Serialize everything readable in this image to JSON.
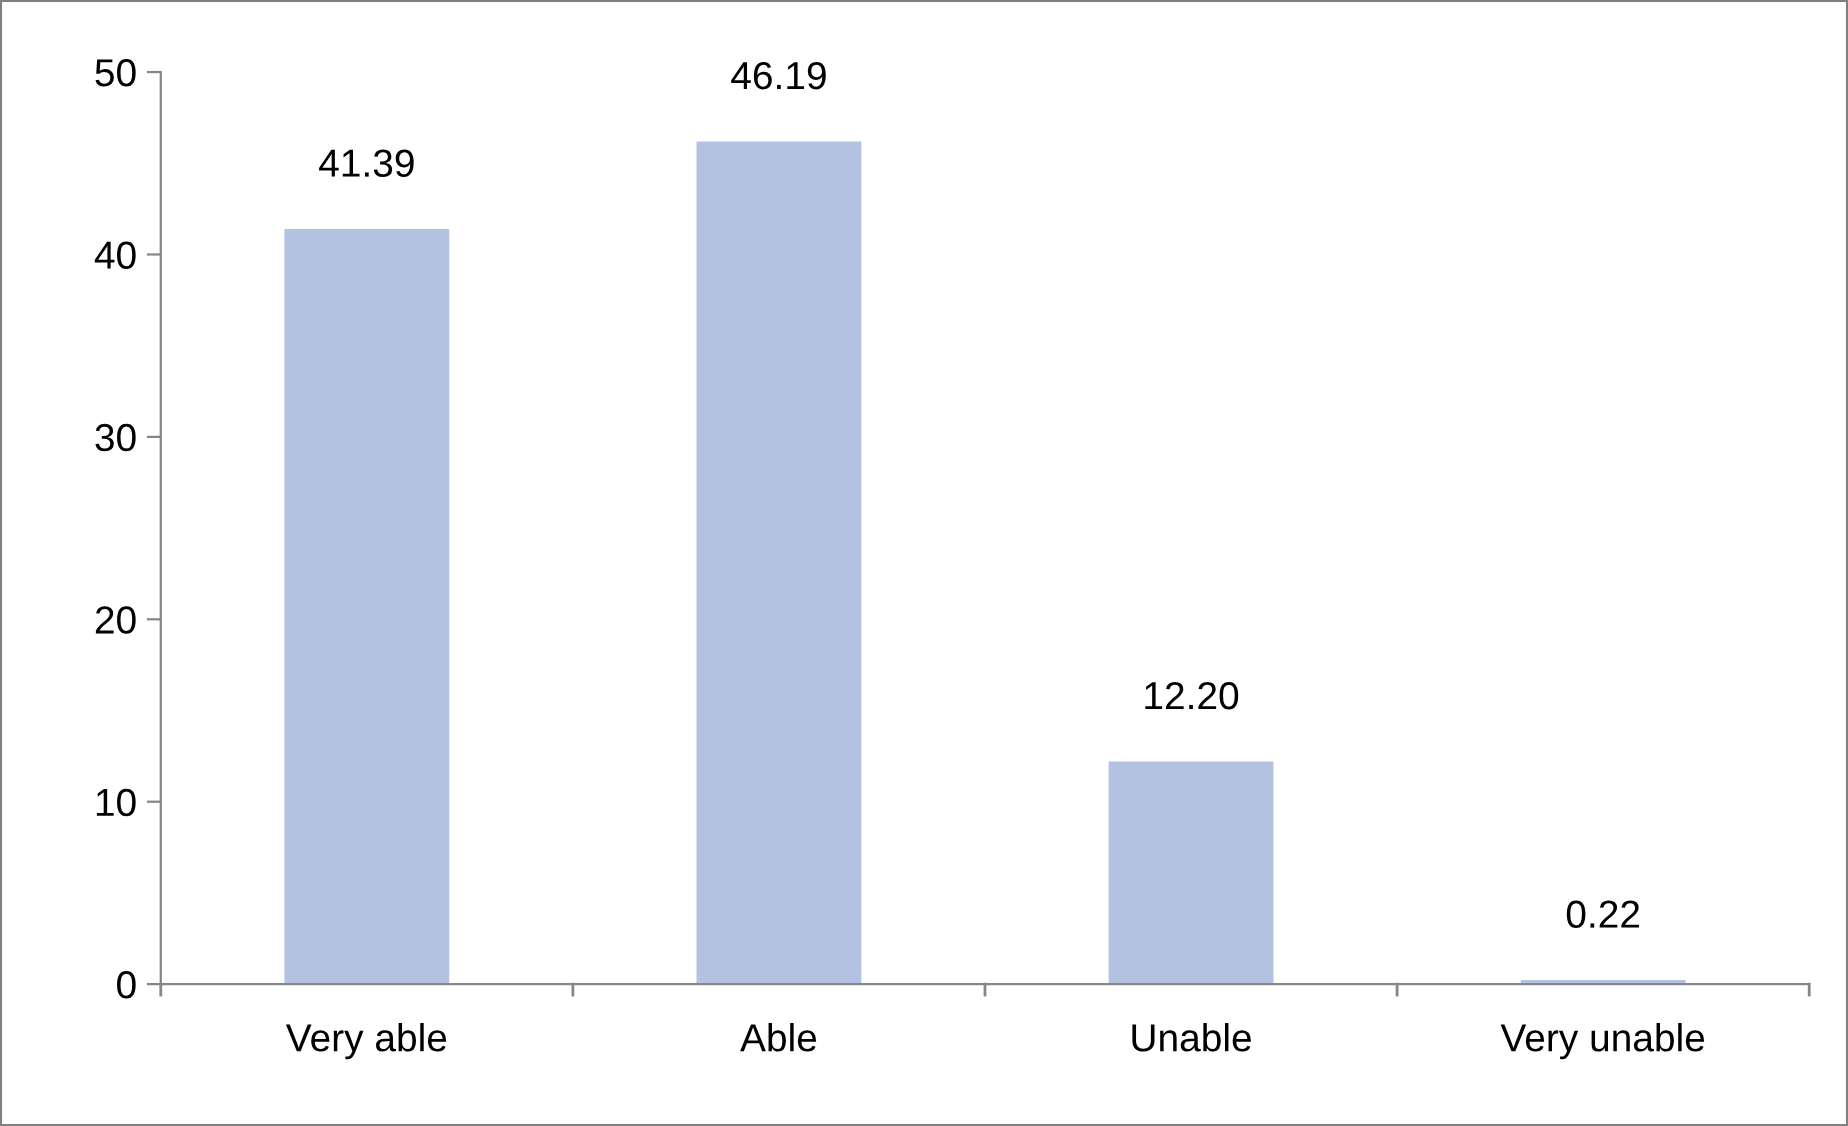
{
  "chart_data": {
    "type": "bar",
    "categories": [
      "Very able",
      "Able",
      "Unable",
      "Very unable"
    ],
    "values": [
      41.39,
      46.19,
      12.2,
      0.22
    ],
    "value_labels": [
      "41.39",
      "46.19",
      "12.20",
      "0.22"
    ],
    "color": "#b3c2e1",
    "ylim": [
      0,
      50
    ],
    "yticks": [
      0,
      10,
      20,
      30,
      40,
      50
    ],
    "grid": false,
    "legend": false
  }
}
